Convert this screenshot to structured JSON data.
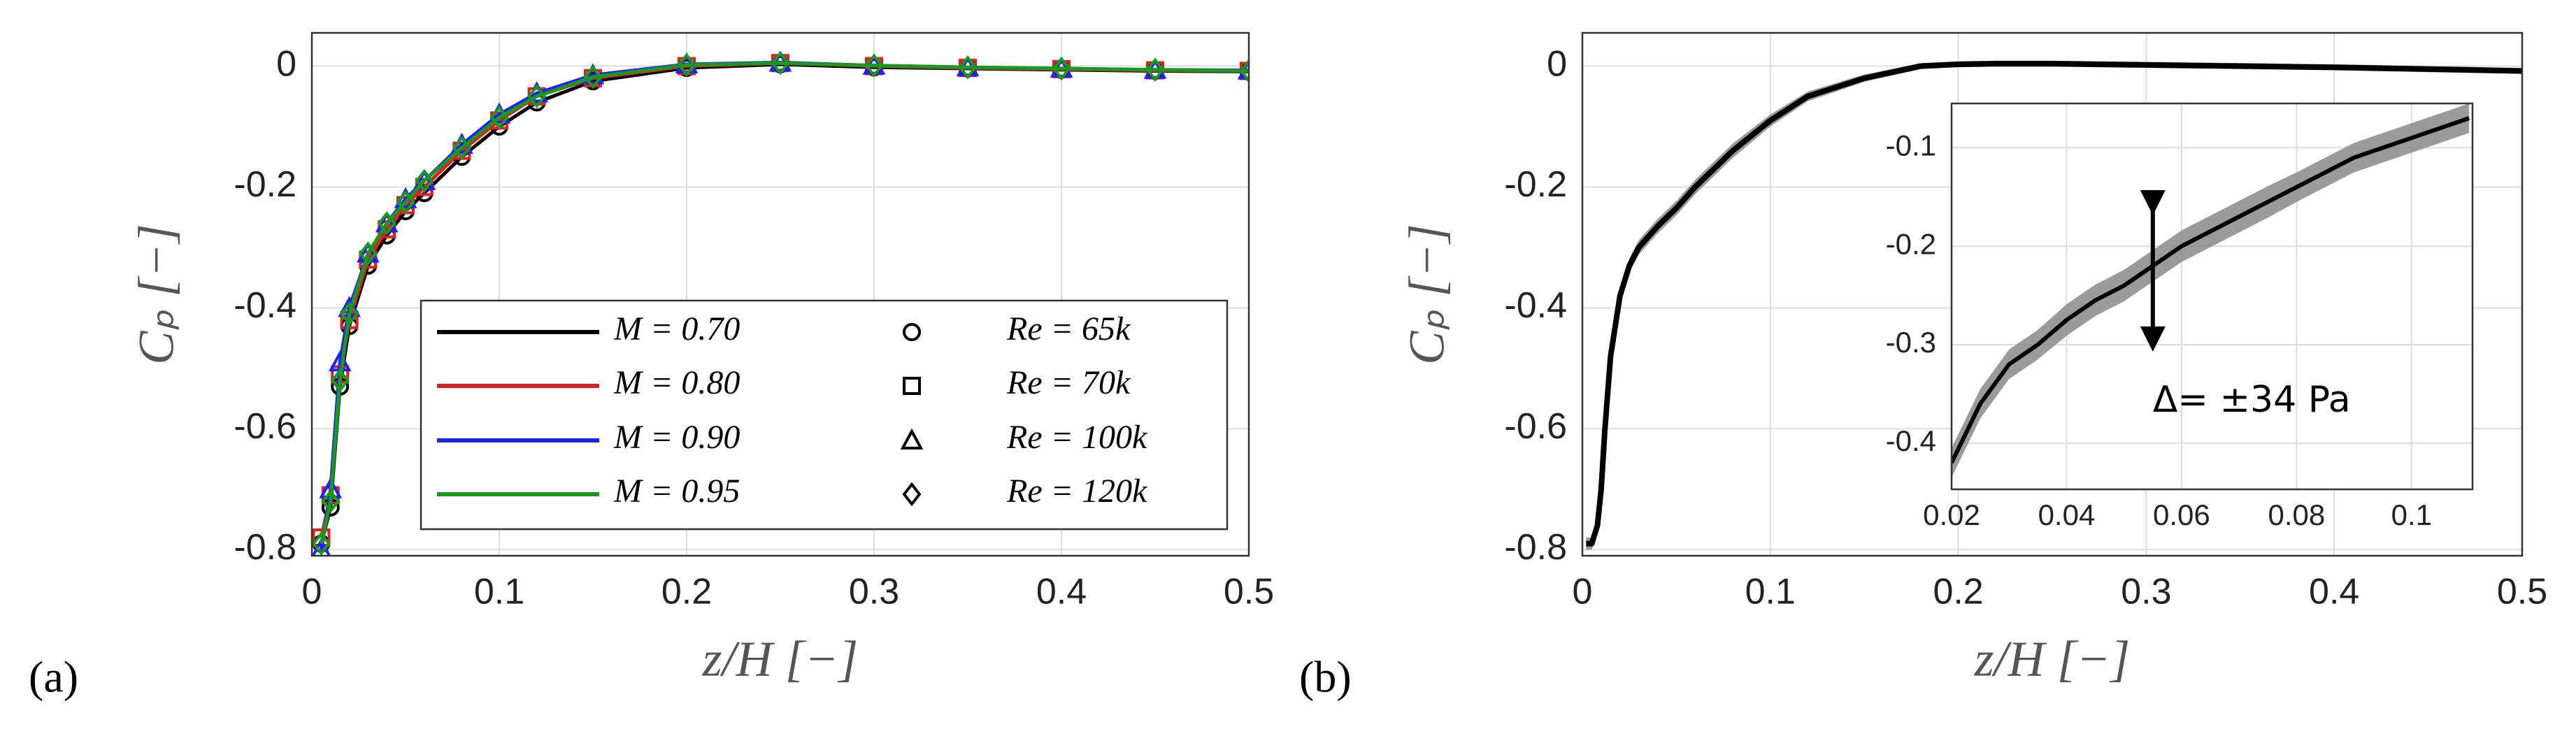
{
  "chart_data": [
    {
      "type": "line",
      "panel_label": "(a)",
      "x_label": "z/H [−]",
      "y_label": "Cₚ [−]",
      "xlim": [
        0,
        0.5
      ],
      "xticks": [
        0,
        0.1,
        0.2,
        0.3,
        0.4,
        0.5
      ],
      "ylim": [
        -0.81,
        0.055
      ],
      "yticks": [
        -0.8,
        -0.6,
        -0.4,
        -0.2,
        0
      ],
      "grid": true,
      "x": [
        0.005,
        0.01,
        0.015,
        0.02,
        0.03,
        0.04,
        0.05,
        0.06,
        0.08,
        0.1,
        0.12,
        0.15,
        0.2,
        0.25,
        0.3,
        0.35,
        0.4,
        0.45,
        0.5
      ],
      "series": [
        {
          "name": "M = 0.70",
          "color": "#000000",
          "marker": "circle",
          "values": [
            -0.79,
            -0.73,
            -0.53,
            -0.43,
            -0.33,
            -0.28,
            -0.24,
            -0.21,
            -0.15,
            -0.1,
            -0.06,
            -0.025,
            -0.003,
            0.003,
            -0.002,
            -0.004,
            -0.006,
            -0.008,
            -0.009
          ]
        },
        {
          "name": "M = 0.80",
          "color": "#e02020",
          "marker": "square",
          "values": [
            -0.78,
            -0.71,
            -0.51,
            -0.42,
            -0.32,
            -0.27,
            -0.23,
            -0.2,
            -0.14,
            -0.09,
            -0.05,
            -0.02,
            0,
            0.005,
            0,
            -0.003,
            -0.005,
            -0.007,
            -0.008
          ]
        },
        {
          "name": "M = 0.90",
          "color": "#1f1fff",
          "marker": "triangle",
          "values": [
            -0.8,
            -0.7,
            -0.49,
            -0.4,
            -0.31,
            -0.26,
            -0.22,
            -0.19,
            -0.13,
            -0.08,
            -0.045,
            -0.015,
            0.003,
            0.006,
            0.001,
            -0.002,
            -0.004,
            -0.006,
            -0.007
          ]
        },
        {
          "name": "M = 0.95",
          "color": "#1a9a1a",
          "marker": "diamond",
          "values": [
            -0.79,
            -0.72,
            -0.52,
            -0.41,
            -0.31,
            -0.26,
            -0.225,
            -0.19,
            -0.135,
            -0.085,
            -0.05,
            -0.018,
            0.002,
            0.005,
            0.001,
            -0.002,
            -0.004,
            -0.006,
            -0.008
          ]
        }
      ],
      "marker_legend": [
        {
          "name": "Re = 65k",
          "marker": "circle"
        },
        {
          "name": "Re = 70k",
          "marker": "square"
        },
        {
          "name": "Re = 100k",
          "marker": "triangle"
        },
        {
          "name": "Re = 120k",
          "marker": "diamond"
        }
      ]
    },
    {
      "type": "line",
      "panel_label": "(b)",
      "x_label": "z/H [−]",
      "y_label": "Cₚ [−]",
      "xlim": [
        0,
        0.5
      ],
      "xticks": [
        0,
        0.1,
        0.2,
        0.3,
        0.4,
        0.5
      ],
      "ylim": [
        -0.81,
        0.055
      ],
      "yticks": [
        -0.8,
        -0.6,
        -0.4,
        -0.2,
        0
      ],
      "grid": true,
      "x": [
        0.002,
        0.005,
        0.008,
        0.01,
        0.012,
        0.015,
        0.02,
        0.025,
        0.03,
        0.04,
        0.05,
        0.06,
        0.07,
        0.08,
        0.1,
        0.12,
        0.15,
        0.18,
        0.2,
        0.22,
        0.25,
        0.3,
        0.35,
        0.4,
        0.45,
        0.5
      ],
      "series": [
        {
          "color": "#000000",
          "values": [
            -0.79,
            -0.79,
            -0.76,
            -0.7,
            -0.6,
            -0.48,
            -0.38,
            -0.33,
            -0.3,
            -0.265,
            -0.235,
            -0.2,
            -0.17,
            -0.14,
            -0.09,
            -0.05,
            -0.02,
            0,
            0.003,
            0.004,
            0.004,
            0.002,
            0,
            -0.002,
            -0.005,
            -0.008
          ],
          "error": [
            0.01,
            0.01,
            0.01,
            0.01,
            0.01,
            0.01,
            0.012,
            0.012,
            0.012,
            0.012,
            0.012,
            0.012,
            0.012,
            0.012,
            0.01,
            0.008,
            0.006,
            0.005,
            0.005,
            0.005,
            0.005,
            0.005,
            0.005,
            0.005,
            0.005,
            0.005
          ]
        }
      ]
    },
    {
      "type": "line",
      "annotation": "Δ= ±34 Pa",
      "xlim": [
        0.02,
        0.1106
      ],
      "xticks": [
        0.02,
        0.04,
        0.06,
        0.08,
        0.1
      ],
      "ylim": [
        -0.447,
        -0.055
      ],
      "yticks": [
        -0.4,
        -0.3,
        -0.2,
        -0.1
      ],
      "grid": true,
      "x": [
        0.02,
        0.025,
        0.03,
        0.035,
        0.04,
        0.045,
        0.05,
        0.055,
        0.06,
        0.065,
        0.07,
        0.075,
        0.08,
        0.085,
        0.09,
        0.095,
        0.1,
        0.105,
        0.11
      ],
      "series": [
        {
          "color": "#000000",
          "values": [
            -0.42,
            -0.36,
            -0.32,
            -0.3,
            -0.275,
            -0.255,
            -0.24,
            -0.22,
            -0.2,
            -0.185,
            -0.17,
            -0.155,
            -0.14,
            -0.125,
            -0.11,
            -0.1,
            -0.09,
            -0.08,
            -0.07
          ],
          "error": [
            0.015,
            0.015,
            0.015,
            0.015,
            0.016,
            0.016,
            0.016,
            0.016,
            0.016,
            0.016,
            0.016,
            0.016,
            0.015,
            0.015,
            0.015,
            0.015,
            0.015,
            0.015,
            0.015
          ]
        }
      ]
    }
  ]
}
